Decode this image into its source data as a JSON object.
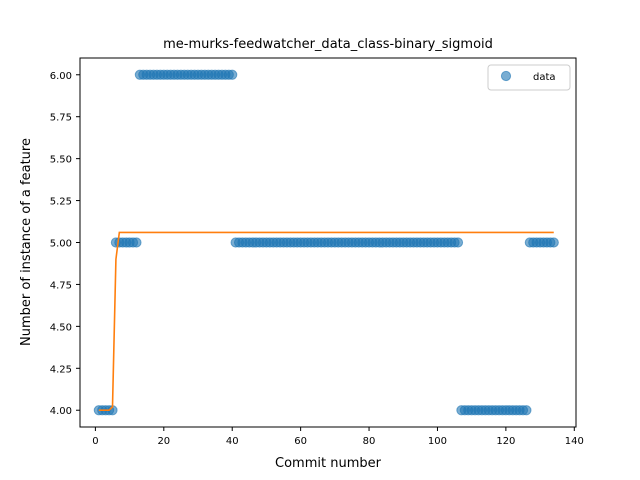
{
  "chart_data": {
    "type": "scatter",
    "title": "me-murks-feedwatcher_data_class-binary_sigmoid",
    "xlabel": "Commit number",
    "ylabel": "Number of instance of a feature",
    "xlim": [
      -4.5,
      140.5
    ],
    "ylim": [
      3.9,
      6.1
    ],
    "xticks": [
      0,
      20,
      40,
      60,
      80,
      100,
      120,
      140
    ],
    "yticks": [
      4.0,
      4.25,
      4.5,
      4.75,
      5.0,
      5.25,
      5.5,
      5.75,
      6.0
    ],
    "ytick_labels": [
      "4.00",
      "4.25",
      "4.50",
      "4.75",
      "5.00",
      "5.25",
      "5.50",
      "5.75",
      "6.00"
    ],
    "grid": false,
    "legend": {
      "placement": "top-right",
      "entries": [
        "data"
      ]
    },
    "colors": {
      "data": "#1f77b4",
      "fit": "#ff7f0e"
    },
    "series": [
      {
        "name": "data",
        "kind": "scatter",
        "segments": [
          {
            "x_from": 1,
            "x_to": 5,
            "y": 4
          },
          {
            "x_from": 6,
            "x_to": 12,
            "y": 5
          },
          {
            "x_from": 13,
            "x_to": 40,
            "y": 6
          },
          {
            "x_from": 41,
            "x_to": 106,
            "y": 5
          },
          {
            "x_from": 107,
            "x_to": 126,
            "y": 4
          },
          {
            "x_from": 127,
            "x_to": 134,
            "y": 5
          }
        ]
      },
      {
        "kind": "line",
        "x": [
          1,
          2,
          3,
          4,
          5,
          6,
          7,
          8,
          20,
          60,
          100,
          134
        ],
        "y": [
          4.0,
          4.0,
          4.0,
          4.0,
          4.02,
          4.9,
          5.06,
          5.06,
          5.06,
          5.06,
          5.06,
          5.06
        ]
      }
    ]
  }
}
